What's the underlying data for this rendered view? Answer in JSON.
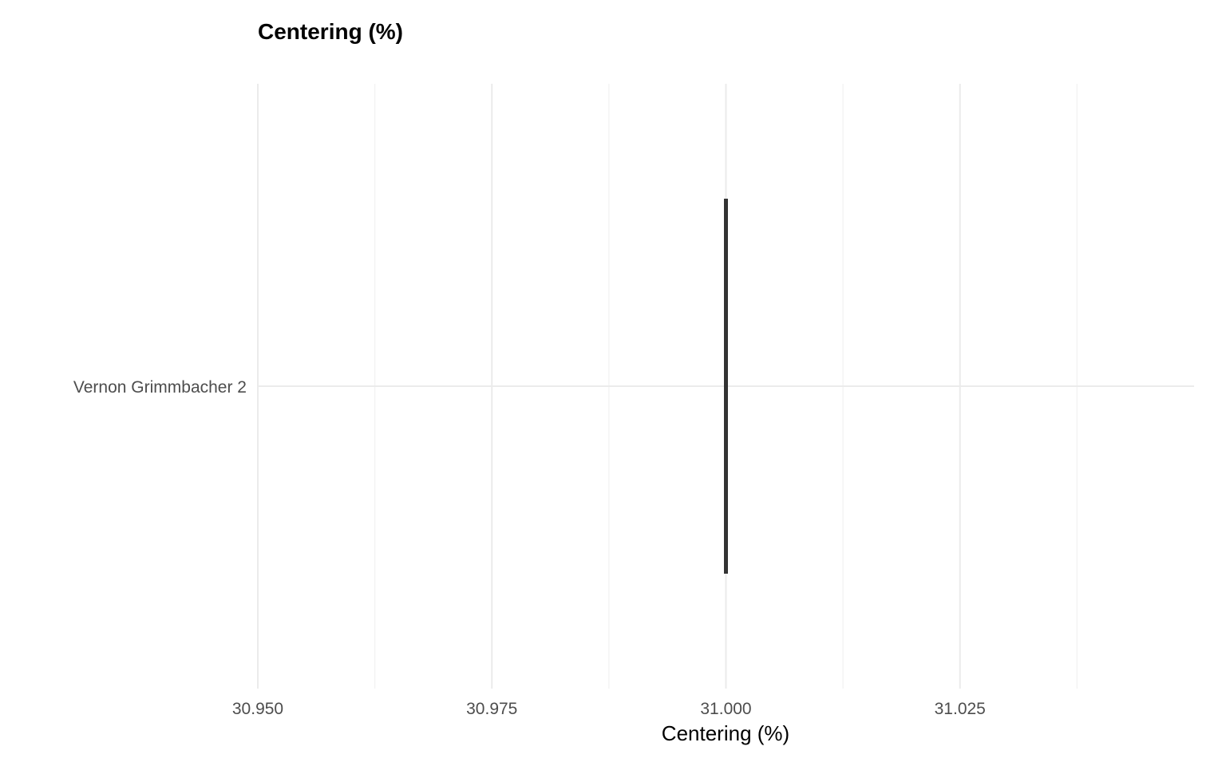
{
  "chart_data": {
    "type": "errorbar",
    "title": "Centering (%)",
    "xlabel": "Centering (%)",
    "ylabel": "",
    "categories": [
      "Vernon Grimmbacher 2"
    ],
    "series": [
      {
        "values": [
          {
            "category": "Vernon Grimmbacher 2",
            "xmin": 31.0,
            "xmax": 31.0
          }
        ]
      }
    ],
    "xlim": [
      30.95,
      31.05
    ],
    "x_ticks": [
      30.95,
      30.975,
      31.0,
      31.025
    ],
    "x_tick_labels": [
      "30.950",
      "30.975",
      "31.000",
      "31.025"
    ],
    "grid": true,
    "legend": "none",
    "colors": {
      "mark": "#333333",
      "grid_major": "#ebebeb",
      "grid_minor": "#f3f3f3",
      "tick_text": "#4d4d4d",
      "title": "#000000"
    }
  }
}
